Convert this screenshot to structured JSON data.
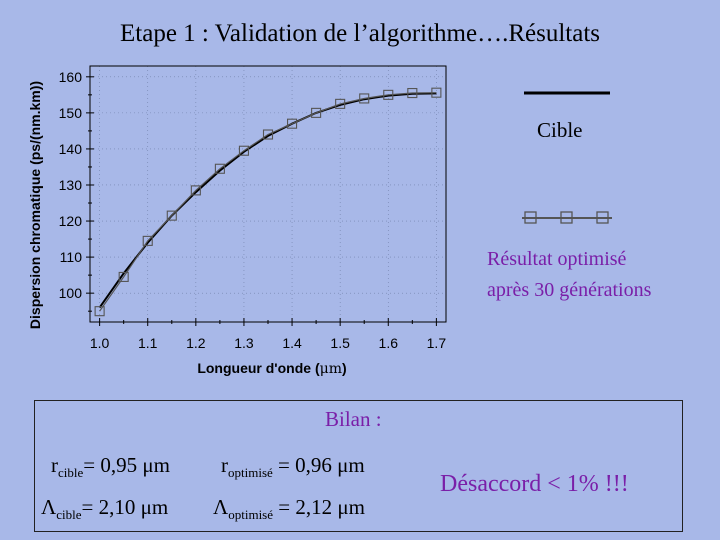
{
  "slide": {
    "title": "Etape 1 : Validation de l’algorithme….Résultats"
  },
  "legend": {
    "target_label": "Cible",
    "optimized_label_line1": "Résultat optimisé",
    "optimized_label_line2": "après 30 générations"
  },
  "chart_data": {
    "type": "line",
    "xlabel_prefix": "Longueur d'onde (",
    "xlabel_unit": "μm",
    "xlabel_suffix": ")",
    "ylabel": "Dispersion chromatique (ps/(nm.km))",
    "xlim": [
      0.98,
      1.72
    ],
    "ylim": [
      92,
      163
    ],
    "xticks": [
      "1.0",
      "1.1",
      "1.2",
      "1.3",
      "1.4",
      "1.5",
      "1.6",
      "1.7"
    ],
    "yticks": [
      "100",
      "110",
      "120",
      "130",
      "140",
      "150",
      "160"
    ],
    "grid": true,
    "series": [
      {
        "name": "Cible",
        "style": "solid-line",
        "color": "#000000",
        "x": [
          1.0,
          1.05,
          1.1,
          1.15,
          1.2,
          1.25,
          1.3,
          1.35,
          1.4,
          1.45,
          1.5,
          1.55,
          1.6,
          1.65,
          1.7
        ],
        "y": [
          96.0,
          105.5,
          114.0,
          121.5,
          128.0,
          134.0,
          139.2,
          143.6,
          147.0,
          150.0,
          152.2,
          153.8,
          154.8,
          155.3,
          155.4
        ]
      },
      {
        "name": "Résultat optimisé",
        "style": "line-squares",
        "color": "#555555",
        "x": [
          1.0,
          1.05,
          1.1,
          1.15,
          1.2,
          1.25,
          1.3,
          1.35,
          1.4,
          1.45,
          1.5,
          1.55,
          1.6,
          1.65,
          1.7
        ],
        "y": [
          95.0,
          104.5,
          114.5,
          121.5,
          128.5,
          134.5,
          139.5,
          144.0,
          147.0,
          150.0,
          152.5,
          154.0,
          155.0,
          155.5,
          155.6
        ]
      }
    ]
  },
  "bilan": {
    "title": "Bilan :",
    "r_cible_sym": "r",
    "r_cible_sub": "cible",
    "r_cible_val": "= 0,95 μm",
    "r_opt_sym": "r",
    "r_opt_sub": "optimisé",
    "r_opt_val": " = 0,96 μm",
    "l_cible_sym": "Λ",
    "l_cible_sub": "cible",
    "l_cible_val": "= 2,10 μm",
    "l_opt_sym": "Λ",
    "l_opt_sub": "optimisé",
    "l_opt_val": " = 2,12 μm",
    "conclusion": "Désaccord < 1% !!!"
  },
  "colors": {
    "background": "#a8b8e8",
    "accent_purple": "#7a1fa8",
    "axis": "#000000"
  }
}
